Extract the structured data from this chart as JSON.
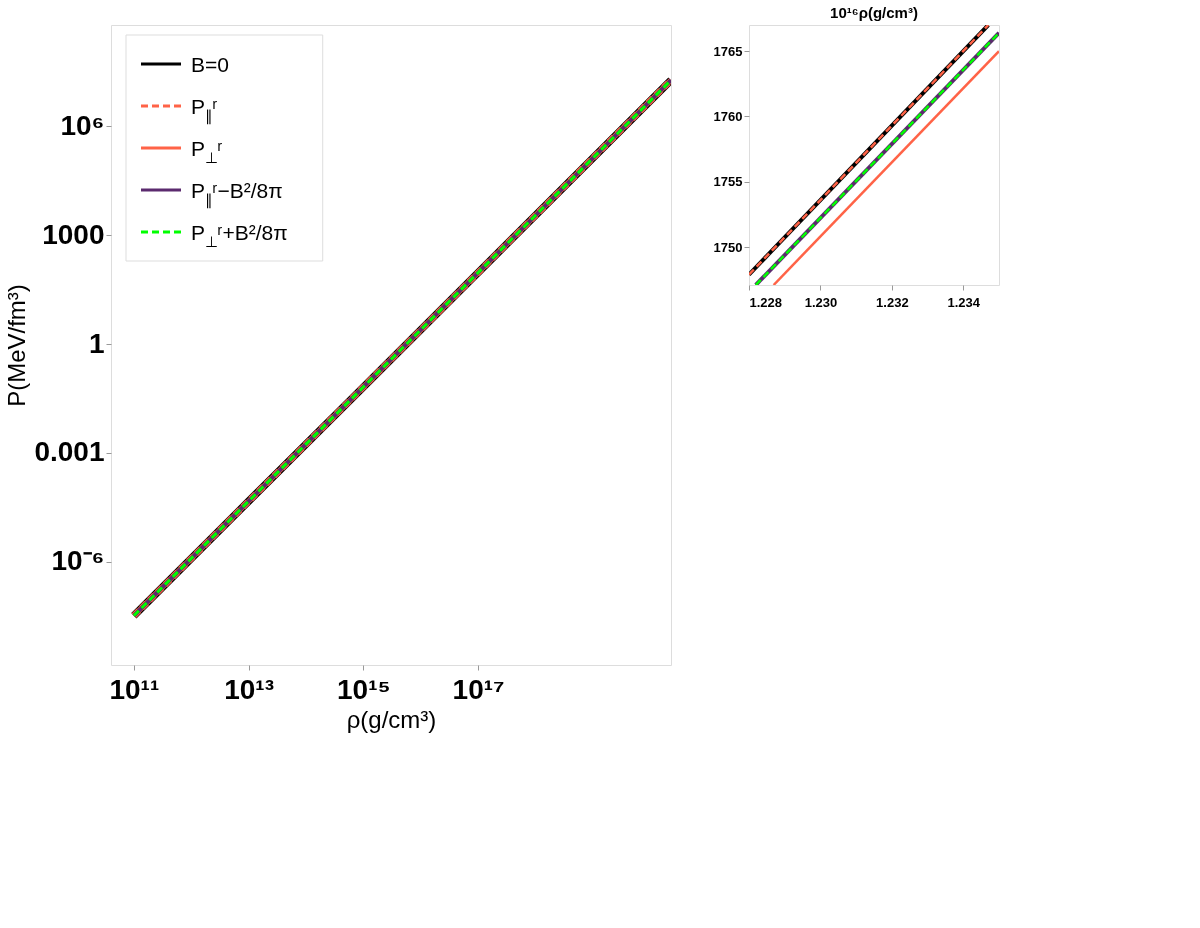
{
  "chart_data": [
    {
      "type": "line",
      "xlabel": "ρ(g/cm³)",
      "ylabel": "P(MeV/fm³)",
      "log": "xy",
      "x": [
        100000000000.0,
        10000000000000.0,
        1000000000000000.0,
        1e+17,
        2.3e+20
      ],
      "xlim": [
        40000000000.0,
        2.3e+20
      ],
      "ylim": [
        1.4e-09,
        630000000.0
      ],
      "xticks": [
        {
          "value": 100000000000.0,
          "label": "10¹¹"
        },
        {
          "value": 10000000000000.0,
          "label": "10¹³"
        },
        {
          "value": 1000000000000000.0,
          "label": "10¹⁵"
        },
        {
          "value": 1e+17,
          "label": "10¹⁷"
        }
      ],
      "yticks": [
        {
          "value": 1e-06,
          "label": "10⁻⁶"
        },
        0.001,
        1,
        1000,
        {
          "value": 1000000.0,
          "label": "10⁶"
        }
      ],
      "legend": "top left",
      "grid": false,
      "series": [
        {
          "name": "B=0",
          "color": "#000000",
          "line_style": "solid",
          "values": [
            3.2e-08,
            4.6e-05,
            0.065,
            93,
            19000000.0
          ]
        },
        {
          "name": "P$_{∥}$ʳ",
          "color": "#ff6347",
          "line_style": "dashed",
          "values": [
            3.2e-08,
            4.6e-05,
            0.065,
            93,
            19000000.0
          ]
        },
        {
          "name": "P$_{⊥}$ʳ",
          "color": "#ff6347",
          "line_style": "solid",
          "values": [
            3.2e-08,
            4.6e-05,
            0.065,
            93,
            19000000.0
          ]
        },
        {
          "name": "P$_{∥}$ʳ−B²/8π",
          "color": "#5b2a6e",
          "line_style": "solid",
          "values": [
            3.2e-08,
            4.6e-05,
            0.065,
            93,
            19000000.0
          ]
        },
        {
          "name": "P$_{⊥}$ʳ+B²/8π",
          "color": "#00ff00",
          "line_style": "dashed",
          "values": [
            3.2e-08,
            4.6e-05,
            0.065,
            93,
            19000000.0
          ]
        }
      ]
    },
    {
      "type": "line",
      "title": "10¹⁶ρ(g/cm³)",
      "xlim": [
        1.228,
        1.235
      ],
      "ylim": [
        1747.1,
        1767
      ],
      "xticks": [
        {
          "value": 1.228,
          "label": "1.228"
        },
        {
          "value": 1.23,
          "label": "1.230"
        },
        {
          "value": 1.232,
          "label": "1.232"
        },
        {
          "value": 1.234,
          "label": "1.234"
        }
      ],
      "yticks": [
        1750,
        1755,
        1760,
        1765
      ],
      "legend": false,
      "grid": false,
      "series": [
        {
          "color": "#000000",
          "line_style": "solid",
          "x": [
            1.228,
            1.2347
          ],
          "values": [
            1747.9,
            1767
          ]
        },
        {
          "color": "#ff6347",
          "line_style": "dashed",
          "x": [
            1.228,
            1.2347
          ],
          "values": [
            1747.9,
            1767
          ]
        },
        {
          "color": "#ff6347",
          "line_style": "solid",
          "x": [
            1.22869,
            1.235
          ],
          "values": [
            1747.1,
            1765.0
          ]
        },
        {
          "color": "#5b2a6e",
          "line_style": "solid",
          "x": [
            1.22819,
            1.235
          ],
          "values": [
            1747.1,
            1766.4
          ]
        },
        {
          "color": "#00ff00",
          "line_style": "dashed",
          "x": [
            1.22819,
            1.235
          ],
          "values": [
            1747.1,
            1766.4
          ]
        }
      ]
    }
  ]
}
